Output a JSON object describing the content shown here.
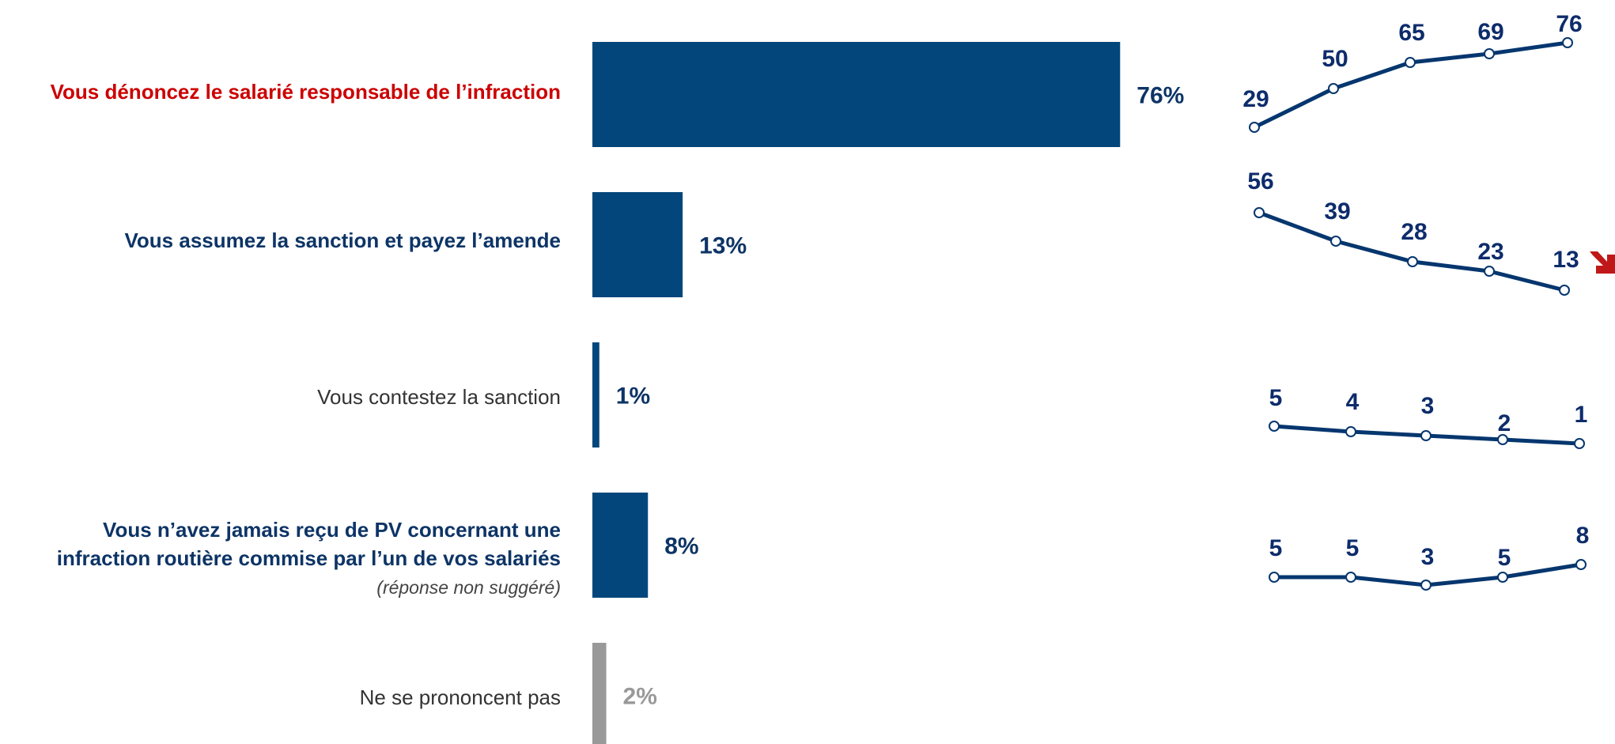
{
  "chart_data": {
    "type": "bar",
    "categories": [
      "Vous dénoncez le salarié responsable de l’infraction",
      "Vous assumez la sanction et payez l’amende",
      "Vous contestez la sanction",
      "Vous n’avez jamais reçu de PV concernant une infraction routière commise par l’un de vos salariés",
      "Ne se prononcent pas"
    ],
    "category_note": "(réponse non suggéré)",
    "values": [
      76,
      13,
      1,
      8,
      2
    ],
    "value_labels": [
      "76%",
      "13%",
      "1%",
      "8%",
      "2%"
    ],
    "bar_colors": [
      "#03467b",
      "#03467b",
      "#03467b",
      "#03467b",
      "#999999"
    ],
    "value_label_colors": [
      "#0d3466",
      "#0d3466",
      "#0d3466",
      "#0d3466",
      "#999999"
    ],
    "xlim": [
      0,
      100
    ],
    "trends": [
      {
        "values": [
          29,
          50,
          65,
          69,
          76
        ]
      },
      {
        "values": [
          56,
          39,
          28,
          23,
          13
        ],
        "arrow": "down"
      },
      {
        "values": [
          5,
          4,
          3,
          2,
          1
        ]
      },
      {
        "values": [
          5,
          5,
          3,
          5,
          8
        ]
      }
    ],
    "colors": {
      "trend_line": "#05366e",
      "trend_label": "#0d2c6b",
      "arrow": "#c01818"
    }
  }
}
